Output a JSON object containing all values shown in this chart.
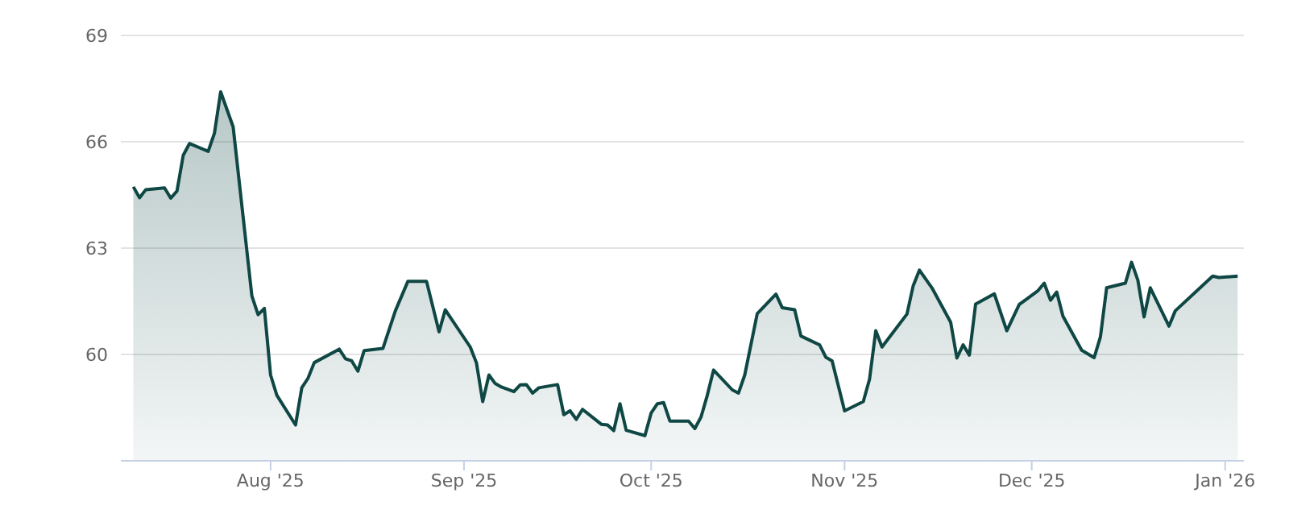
{
  "chart_data": {
    "type": "area",
    "x": [
      "2025-07-10",
      "2025-07-11",
      "2025-07-12",
      "2025-07-15",
      "2025-07-16",
      "2025-07-17",
      "2025-07-18",
      "2025-07-19",
      "2025-07-22",
      "2025-07-23",
      "2025-07-24",
      "2025-07-26",
      "2025-07-29",
      "2025-07-30",
      "2025-07-31",
      "2025-08-01",
      "2025-08-02",
      "2025-08-05",
      "2025-08-06",
      "2025-08-07",
      "2025-08-08",
      "2025-08-12",
      "2025-08-13",
      "2025-08-14",
      "2025-08-15",
      "2025-08-16",
      "2025-08-19",
      "2025-08-21",
      "2025-08-23",
      "2025-08-26",
      "2025-08-28",
      "2025-08-29",
      "2025-09-02",
      "2025-09-03",
      "2025-09-04",
      "2025-09-05",
      "2025-09-06",
      "2025-09-07",
      "2025-09-09",
      "2025-09-10",
      "2025-09-11",
      "2025-09-12",
      "2025-09-13",
      "2025-09-16",
      "2025-09-17",
      "2025-09-18",
      "2025-09-19",
      "2025-09-20",
      "2025-09-23",
      "2025-09-24",
      "2025-09-25",
      "2025-09-26",
      "2025-09-27",
      "2025-09-30",
      "2025-10-01",
      "2025-10-02",
      "2025-10-03",
      "2025-10-04",
      "2025-10-07",
      "2025-10-08",
      "2025-10-09",
      "2025-10-10",
      "2025-10-11",
      "2025-10-14",
      "2025-10-15",
      "2025-10-16",
      "2025-10-18",
      "2025-10-21",
      "2025-10-22",
      "2025-10-24",
      "2025-10-25",
      "2025-10-28",
      "2025-10-29",
      "2025-10-30",
      "2025-11-01",
      "2025-11-04",
      "2025-11-05",
      "2025-11-06",
      "2025-11-07",
      "2025-11-11",
      "2025-11-12",
      "2025-11-13",
      "2025-11-15",
      "2025-11-18",
      "2025-11-19",
      "2025-11-20",
      "2025-11-21",
      "2025-11-22",
      "2025-11-25",
      "2025-11-27",
      "2025-11-29",
      "2025-12-02",
      "2025-12-03",
      "2025-12-04",
      "2025-12-05",
      "2025-12-06",
      "2025-12-09",
      "2025-12-11",
      "2025-12-12",
      "2025-12-13",
      "2025-12-16",
      "2025-12-17",
      "2025-12-18",
      "2025-12-19",
      "2025-12-20",
      "2025-12-23",
      "2025-12-24",
      "2025-12-30",
      "2025-12-31",
      "2026-01-03"
    ],
    "series": [
      {
        "color": "#0e4744",
        "values": [
          64.73,
          64.42,
          64.65,
          64.7,
          64.41,
          64.61,
          65.62,
          65.95,
          65.73,
          66.24,
          67.41,
          66.42,
          61.65,
          61.12,
          61.3,
          59.42,
          58.85,
          58.01,
          59.06,
          59.33,
          59.77,
          60.15,
          59.88,
          59.82,
          59.53,
          60.11,
          60.17,
          61.23,
          62.06,
          62.06,
          60.64,
          61.26,
          60.21,
          59.76,
          58.67,
          59.42,
          59.18,
          59.08,
          58.95,
          59.14,
          59.15,
          58.91,
          59.06,
          59.15,
          58.3,
          58.41,
          58.17,
          58.45,
          58.03,
          58.01,
          57.85,
          58.61,
          57.86,
          57.71,
          58.35,
          58.61,
          58.64,
          58.12,
          58.12,
          57.91,
          58.24,
          58.85,
          59.56,
          59.0,
          58.91,
          59.42,
          61.15,
          61.7,
          61.32,
          61.26,
          60.52,
          60.27,
          59.92,
          59.82,
          58.41,
          58.67,
          59.3,
          60.67,
          60.21,
          61.14,
          61.94,
          62.38,
          61.88,
          60.91,
          59.9,
          60.27,
          59.98,
          61.42,
          61.71,
          60.67,
          61.41,
          61.8,
          62.01,
          61.53,
          61.76,
          61.08,
          60.12,
          59.91,
          60.49,
          61.88,
          62.01,
          62.6,
          62.1,
          61.06,
          61.88,
          60.8,
          61.23,
          62.21,
          62.17,
          62.21
        ]
      }
    ],
    "xlim": [
      "2025-07-08",
      "2026-01-04"
    ],
    "xticks": [
      {
        "value": "2025-08-01",
        "label": "Aug '25"
      },
      {
        "value": "2025-09-01",
        "label": "Sep '25"
      },
      {
        "value": "2025-10-01",
        "label": "Oct '25"
      },
      {
        "value": "2025-11-01",
        "label": "Nov '25"
      },
      {
        "value": "2025-12-01",
        "label": "Dec '25"
      },
      {
        "value": "2026-01-01",
        "label": "Jan '26"
      }
    ],
    "ylim": [
      57,
      69
    ],
    "yticks": [
      60,
      63,
      66,
      69
    ],
    "grid": "y",
    "legend": false,
    "marker": "none",
    "line_style": "solid"
  }
}
